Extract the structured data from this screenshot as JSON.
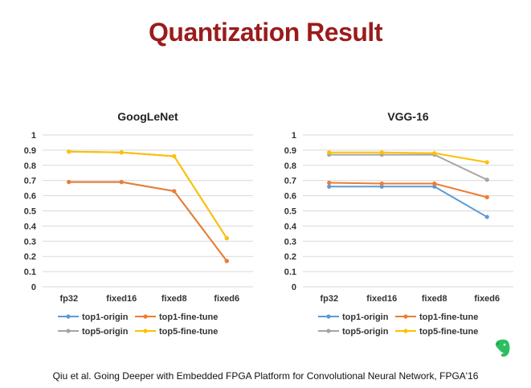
{
  "title": "Quantization Result",
  "citation": "Qiu et al.  Going Deeper with Embedded FPGA Platform for Convolutional Neural Network, FPGA'16",
  "logo_icon": "evernote-elephant-icon",
  "chart_data": [
    {
      "type": "line",
      "title": "GoogLeNet",
      "categories": [
        "fp32",
        "fixed16",
        "fixed8",
        "fixed6"
      ],
      "ylim": [
        0,
        1
      ],
      "yticks": [
        "0",
        "0.1",
        "0.2",
        "0.3",
        "0.4",
        "0.5",
        "0.6",
        "0.7",
        "0.8",
        "0.9",
        "1"
      ],
      "grid": true,
      "legend": "bottom",
      "series": [
        {
          "name": "top1-origin",
          "color": "#5b9bd5",
          "values": [
            0.69,
            0.69,
            0.63,
            0.17
          ]
        },
        {
          "name": "top1-fine-tune",
          "color": "#ed7d31",
          "values": [
            0.69,
            0.69,
            0.63,
            0.17
          ]
        },
        {
          "name": "top5-origin",
          "color": "#a5a5a5",
          "values": [
            0.89,
            0.885,
            0.86,
            0.32
          ]
        },
        {
          "name": "top5-fine-tune",
          "color": "#ffc000",
          "values": [
            0.89,
            0.885,
            0.86,
            0.32
          ]
        }
      ]
    },
    {
      "type": "line",
      "title": "VGG-16",
      "categories": [
        "fp32",
        "fixed16",
        "fixed8",
        "fixed6"
      ],
      "ylim": [
        0,
        1
      ],
      "yticks": [
        "0",
        "0.1",
        "0.2",
        "0.3",
        "0.4",
        "0.5",
        "0.6",
        "0.7",
        "0.8",
        "0.9",
        "1"
      ],
      "grid": true,
      "legend": "bottom",
      "series": [
        {
          "name": "top1-origin",
          "color": "#5b9bd5",
          "values": [
            0.66,
            0.66,
            0.66,
            0.46
          ]
        },
        {
          "name": "top1-fine-tune",
          "color": "#ed7d31",
          "values": [
            0.685,
            0.68,
            0.68,
            0.59
          ]
        },
        {
          "name": "top5-origin",
          "color": "#a5a5a5",
          "values": [
            0.87,
            0.87,
            0.87,
            0.705
          ]
        },
        {
          "name": "top5-fine-tune",
          "color": "#ffc000",
          "values": [
            0.885,
            0.885,
            0.88,
            0.82
          ]
        }
      ]
    }
  ]
}
